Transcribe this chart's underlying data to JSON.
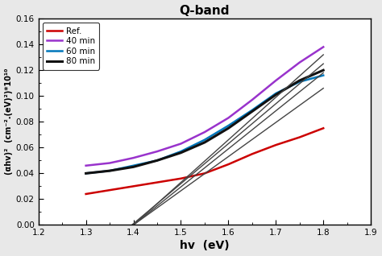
{
  "title": "Q-band",
  "xlabel": "hv  (eV)",
  "ylabel": "(αhv)²  (cm⁻².(eV)²)*10¹⁰",
  "xlim": [
    1.2,
    1.9
  ],
  "ylim": [
    0,
    0.16
  ],
  "xticks": [
    1.2,
    1.3,
    1.4,
    1.5,
    1.6,
    1.7,
    1.8,
    1.9
  ],
  "yticks": [
    0,
    0.02,
    0.04,
    0.06,
    0.08,
    0.1,
    0.12,
    0.14,
    0.16
  ],
  "series": [
    {
      "label": "Ref.",
      "color": "#cc0000",
      "x": [
        1.3,
        1.35,
        1.4,
        1.45,
        1.5,
        1.55,
        1.6,
        1.65,
        1.7,
        1.75,
        1.8
      ],
      "y": [
        0.024,
        0.027,
        0.03,
        0.033,
        0.036,
        0.04,
        0.047,
        0.055,
        0.062,
        0.068,
        0.075
      ],
      "lw": 1.8
    },
    {
      "label": "40 min",
      "color": "#9933CC",
      "x": [
        1.3,
        1.35,
        1.4,
        1.45,
        1.5,
        1.55,
        1.6,
        1.65,
        1.7,
        1.75,
        1.8
      ],
      "y": [
        0.046,
        0.048,
        0.052,
        0.057,
        0.063,
        0.072,
        0.083,
        0.097,
        0.112,
        0.126,
        0.138
      ],
      "lw": 1.8
    },
    {
      "label": "60 min",
      "color": "#0077BB",
      "x": [
        1.3,
        1.35,
        1.4,
        1.45,
        1.5,
        1.55,
        1.6,
        1.65,
        1.7,
        1.75,
        1.8
      ],
      "y": [
        0.04,
        0.042,
        0.046,
        0.05,
        0.057,
        0.066,
        0.077,
        0.089,
        0.102,
        0.111,
        0.116
      ],
      "lw": 1.8
    },
    {
      "label": "80 min",
      "color": "#111111",
      "x": [
        1.3,
        1.35,
        1.4,
        1.45,
        1.5,
        1.55,
        1.6,
        1.65,
        1.7,
        1.75,
        1.8
      ],
      "y": [
        0.04,
        0.042,
        0.045,
        0.05,
        0.056,
        0.064,
        0.075,
        0.088,
        0.101,
        0.112,
        0.12
      ],
      "lw": 2.2
    }
  ],
  "tangent_lines": [
    {
      "color": "#444444",
      "slope": 0.33,
      "intercept": -0.462,
      "lw": 1.0
    },
    {
      "color": "#444444",
      "slope": 0.31,
      "intercept": -0.433,
      "lw": 1.0
    },
    {
      "color": "#444444",
      "slope": 0.295,
      "intercept": -0.413,
      "lw": 1.0
    },
    {
      "color": "#444444",
      "slope": 0.265,
      "intercept": -0.371,
      "lw": 1.0
    }
  ],
  "background_color": "#e8e8e8",
  "plot_bg_color": "#ffffff"
}
